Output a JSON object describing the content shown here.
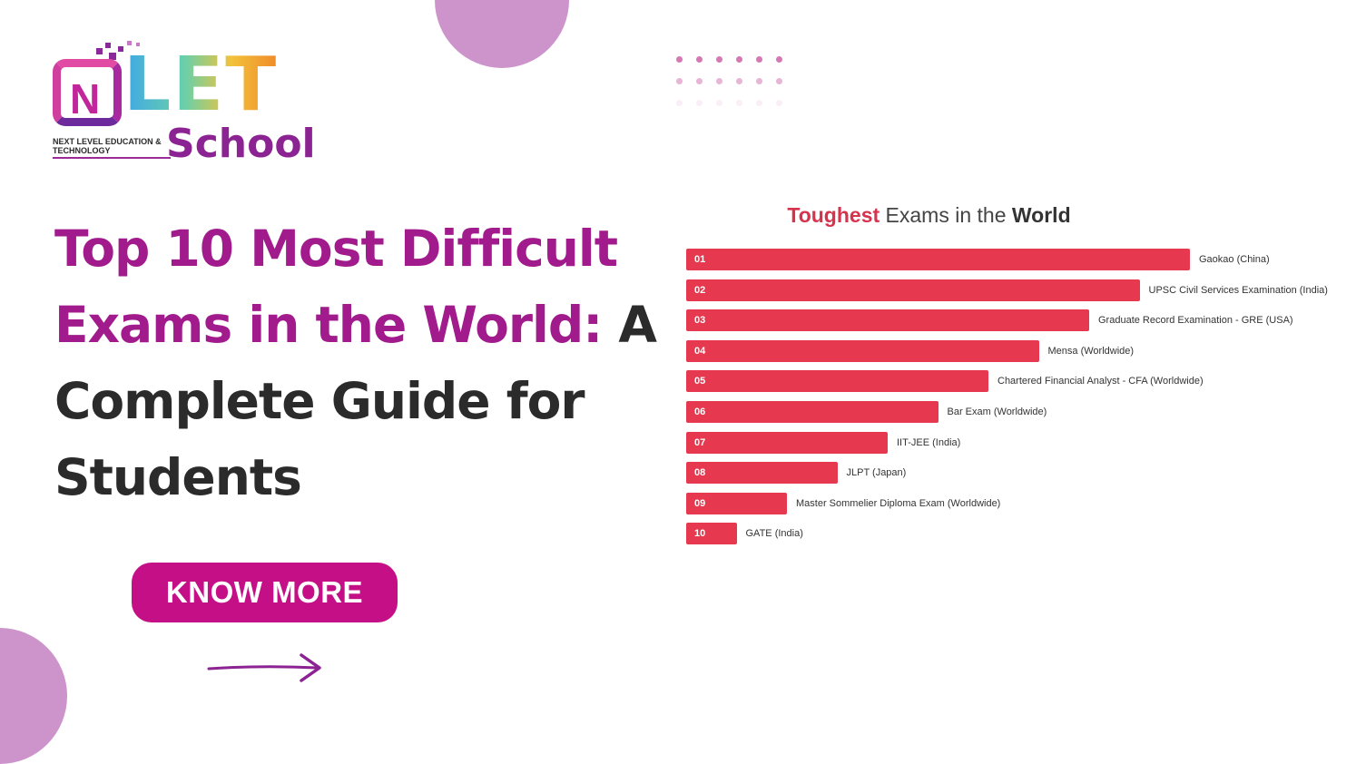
{
  "brand": {
    "logo_mark": "N",
    "logo_word": "LET",
    "tagline": "NEXT LEVEL EDUCATION & TECHNOLOGY",
    "school": "School"
  },
  "headline": {
    "accent_line1": "Top 10 Most Difficult",
    "accent_line2": "Exams in the World:",
    "rest": " A Complete Guide for Students"
  },
  "cta": {
    "label": "KNOW MORE"
  },
  "colors": {
    "accent": "#a11b8d",
    "button": "#c40f87",
    "bar": "#e6394f",
    "blob": "#cd94cc"
  },
  "icons": {
    "arrow": "arrow-right-icon"
  },
  "chart_data": {
    "type": "bar",
    "orientation": "horizontal",
    "title_parts": [
      "Toughest",
      " Exams in the ",
      "World"
    ],
    "title": "Toughest Exams in the World",
    "categories": [
      "Gaokao (China)",
      "UPSC Civil Services Examination (India)",
      "Graduate Record Examination - GRE (USA)",
      "Mensa (Worldwide)",
      "Chartered Financial Analyst - CFA (Worldwide)",
      "Bar Exam (Worldwide)",
      "IIT-JEE (India)",
      "JLPT (Japan)",
      "Master Sommelier Diploma Exam (Worldwide)",
      "GATE (India)"
    ],
    "ranks": [
      "01",
      "02",
      "03",
      "04",
      "05",
      "06",
      "07",
      "08",
      "09",
      "10"
    ],
    "values": [
      10,
      9,
      8,
      7,
      6,
      5,
      4,
      3,
      2,
      1
    ],
    "xlim": [
      0,
      10
    ],
    "grid": false,
    "legend": "none"
  }
}
